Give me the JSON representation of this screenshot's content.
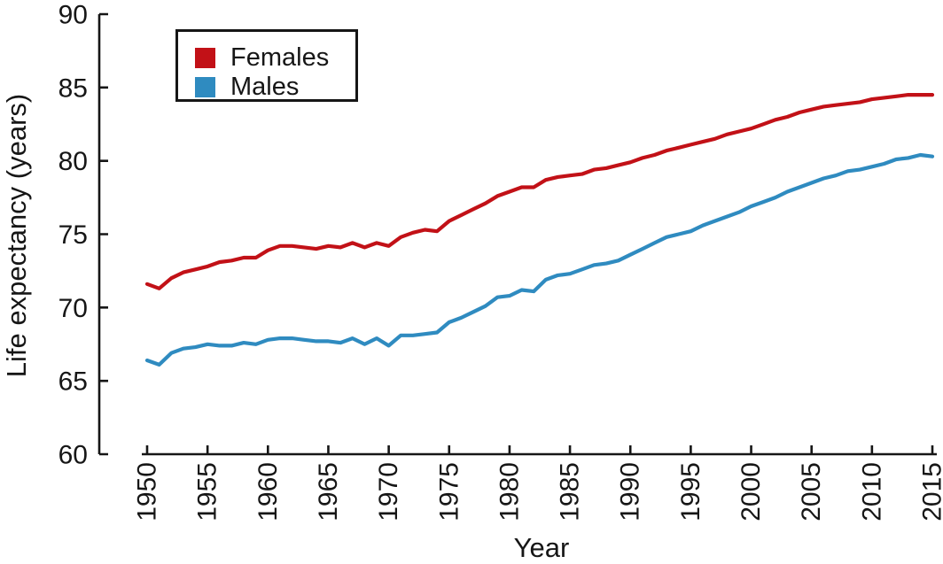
{
  "chart_data": {
    "type": "line",
    "title": "",
    "xlabel": "Year",
    "ylabel": "Life expectancy (years)",
    "xlim": [
      1950,
      2015
    ],
    "ylim": [
      60,
      90
    ],
    "x_ticks": [
      1950,
      1955,
      1960,
      1965,
      1970,
      1975,
      1980,
      1985,
      1990,
      1995,
      2000,
      2005,
      2010,
      2015
    ],
    "y_ticks": [
      60,
      65,
      70,
      75,
      80,
      85,
      90
    ],
    "grid": false,
    "legend_position": "top-left",
    "axis_color": "#161616",
    "years": [
      1950,
      1951,
      1952,
      1953,
      1954,
      1955,
      1956,
      1957,
      1958,
      1959,
      1960,
      1961,
      1962,
      1963,
      1964,
      1965,
      1966,
      1967,
      1968,
      1969,
      1970,
      1971,
      1972,
      1973,
      1974,
      1975,
      1976,
      1977,
      1978,
      1979,
      1980,
      1981,
      1982,
      1983,
      1984,
      1985,
      1986,
      1987,
      1988,
      1989,
      1990,
      1991,
      1992,
      1993,
      1994,
      1995,
      1996,
      1997,
      1998,
      1999,
      2000,
      2001,
      2002,
      2003,
      2004,
      2005,
      2006,
      2007,
      2008,
      2009,
      2010,
      2011,
      2012,
      2013,
      2014,
      2015
    ],
    "series": [
      {
        "name": "Females",
        "color": "#c21117",
        "values": [
          71.6,
          71.3,
          72.0,
          72.4,
          72.6,
          72.8,
          73.1,
          73.2,
          73.4,
          73.4,
          73.9,
          74.2,
          74.2,
          74.1,
          74.0,
          74.2,
          74.1,
          74.4,
          74.1,
          74.4,
          74.2,
          74.8,
          75.1,
          75.3,
          75.2,
          75.9,
          76.3,
          76.7,
          77.1,
          77.6,
          77.9,
          78.2,
          78.2,
          78.7,
          78.9,
          79.0,
          79.1,
          79.4,
          79.5,
          79.7,
          79.9,
          80.2,
          80.4,
          80.7,
          80.9,
          81.1,
          81.3,
          81.5,
          81.8,
          82.0,
          82.2,
          82.5,
          82.8,
          83.0,
          83.3,
          83.5,
          83.7,
          83.8,
          83.9,
          84.0,
          84.2,
          84.3,
          84.4,
          84.5,
          84.5,
          84.5
        ]
      },
      {
        "name": "Males",
        "color": "#2f8bc0",
        "values": [
          66.4,
          66.1,
          66.9,
          67.2,
          67.3,
          67.5,
          67.4,
          67.4,
          67.6,
          67.5,
          67.8,
          67.9,
          67.9,
          67.8,
          67.7,
          67.7,
          67.6,
          67.9,
          67.5,
          67.9,
          67.4,
          68.1,
          68.1,
          68.2,
          68.3,
          69.0,
          69.3,
          69.7,
          70.1,
          70.7,
          70.8,
          71.2,
          71.1,
          71.9,
          72.2,
          72.3,
          72.6,
          72.9,
          73.0,
          73.2,
          73.6,
          74.0,
          74.4,
          74.8,
          75.0,
          75.2,
          75.6,
          75.9,
          76.2,
          76.5,
          76.9,
          77.2,
          77.5,
          77.9,
          78.2,
          78.5,
          78.8,
          79.0,
          79.3,
          79.4,
          79.6,
          79.8,
          80.1,
          80.2,
          80.4,
          80.3
        ]
      }
    ]
  },
  "axes": {
    "x_title": "Year",
    "y_title": "Life expectancy (years)"
  },
  "legend": {
    "items": [
      {
        "label": "Females",
        "color": "#c21117"
      },
      {
        "label": "Males",
        "color": "#2f8bc0"
      }
    ]
  }
}
